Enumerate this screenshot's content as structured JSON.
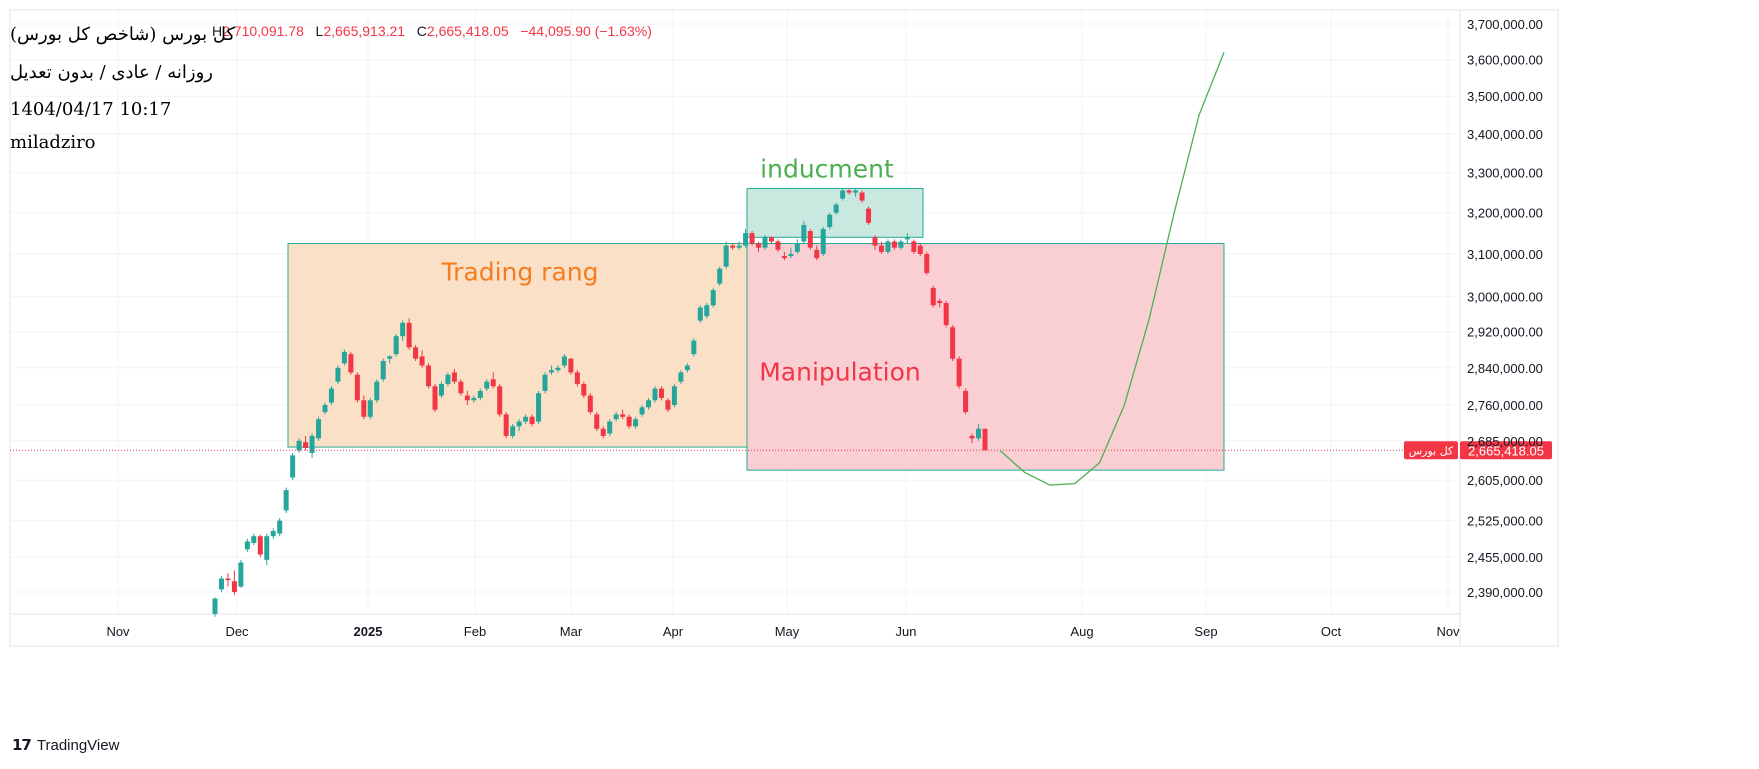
{
  "header": {
    "symbol_name": "کل بورس (شاخص کل بورس)",
    "high_label": "H",
    "high_value": "2,710,091.78",
    "low_label": "L",
    "low_value": "2,665,913.21",
    "close_label": "C",
    "close_value": "2,665,418.05",
    "change": "−44,095.90 (−1.63%)",
    "interval": "روزانه / عادی / بدون تعدیل",
    "datetime": "1404/04/17 10:17",
    "author": "miladziro"
  },
  "brand": {
    "name": "TradingView",
    "icon": "tradingview-logo-icon"
  },
  "price_tag": {
    "symbol": "کل بورس",
    "value": "2,665,418.05"
  },
  "colors": {
    "up": "#26a69a",
    "down": "#f23645",
    "trading_range_fill": "#f9e0c7",
    "manipulation_fill": "#f9cfd4",
    "inducement_fill": "#c9e8e0",
    "box_border": "#22ab94",
    "trading_range_text": "#f57c1f",
    "manipulation_text": "#f23645",
    "inducement_text": "#4caf50",
    "projection_line": "#4caf50"
  },
  "chart_data": {
    "type": "candlestick",
    "title": "",
    "ylim": [
      2350000,
      3740000
    ],
    "y_scale": "log",
    "grid": true,
    "x_tick_labels": [
      "Nov",
      "Dec",
      "2025",
      "Feb",
      "Mar",
      "Apr",
      "May",
      "Jun",
      "Aug",
      "Sep",
      "Oct",
      "Nov"
    ],
    "y_tick_labels": [
      "3,700,000.00",
      "3,600,000.00",
      "3,500,000.00",
      "3,400,000.00",
      "3,300,000.00",
      "3,200,000.00",
      "3,100,000.00",
      "3,000,000.00",
      "2,920,000.00",
      "2,840,000.00",
      "2,760,000.00",
      "2,685,000.00",
      "2,605,000.00",
      "2,525,000.00",
      "2,455,000.00",
      "2,390,000.00"
    ],
    "y_ticks": [
      3700000,
      3600000,
      3500000,
      3400000,
      3300000,
      3200000,
      3100000,
      3000000,
      2920000,
      2840000,
      2760000,
      2685000,
      2605000,
      2525000,
      2455000,
      2390000
    ],
    "last_price": 2665418.05,
    "annotations": [
      {
        "type": "box",
        "label": "Trading rang",
        "color": "trading_range",
        "price_top": 3125000,
        "price_bottom": 2672000
      },
      {
        "type": "box",
        "label": "Manipulation",
        "color": "manipulation",
        "price_top": 3125000,
        "price_bottom": 2625000
      },
      {
        "type": "box",
        "label": "inducment",
        "color": "inducement",
        "price_top": 3260000,
        "price_bottom": 3140000
      }
    ],
    "projection": {
      "type": "line",
      "color": "projection_line",
      "values": [
        2665000,
        2620000,
        2595000,
        2598000,
        2640000,
        2760000,
        2950000,
        3200000,
        3450000,
        3620000
      ]
    },
    "candles": [
      [
        2350000,
        2380000,
        2345000,
        2378000
      ],
      [
        2395000,
        2420000,
        2390000,
        2415000
      ],
      [
        2415000,
        2425000,
        2400000,
        2412000
      ],
      [
        2410000,
        2430000,
        2385000,
        2390000
      ],
      [
        2400000,
        2450000,
        2398000,
        2445000
      ],
      [
        2470000,
        2490000,
        2465000,
        2485000
      ],
      [
        2482000,
        2500000,
        2478000,
        2495000
      ],
      [
        2495000,
        2498000,
        2455000,
        2460000
      ],
      [
        2450000,
        2500000,
        2440000,
        2495000
      ],
      [
        2495000,
        2510000,
        2490000,
        2505000
      ],
      [
        2500000,
        2530000,
        2495000,
        2525000
      ],
      [
        2545000,
        2590000,
        2540000,
        2585000
      ],
      [
        2610000,
        2660000,
        2605000,
        2655000
      ],
      [
        2665000,
        2690000,
        2660000,
        2685000
      ],
      [
        2682000,
        2695000,
        2665000,
        2670000
      ],
      [
        2660000,
        2700000,
        2650000,
        2695000
      ],
      [
        2690000,
        2735000,
        2685000,
        2730000
      ],
      [
        2745000,
        2765000,
        2740000,
        2760000
      ],
      [
        2765000,
        2800000,
        2760000,
        2795000
      ],
      [
        2810000,
        2845000,
        2805000,
        2840000
      ],
      [
        2850000,
        2880000,
        2845000,
        2875000
      ],
      [
        2870000,
        2875000,
        2825000,
        2830000
      ],
      [
        2825000,
        2830000,
        2765000,
        2770000
      ],
      [
        2770000,
        2780000,
        2730000,
        2735000
      ],
      [
        2735000,
        2775000,
        2730000,
        2770000
      ],
      [
        2770000,
        2815000,
        2765000,
        2810000
      ],
      [
        2815000,
        2860000,
        2810000,
        2855000
      ],
      [
        2860000,
        2868000,
        2850000,
        2865000
      ],
      [
        2870000,
        2915000,
        2865000,
        2910000
      ],
      [
        2910000,
        2945000,
        2900000,
        2940000
      ],
      [
        2940000,
        2950000,
        2880000,
        2885000
      ],
      [
        2885000,
        2890000,
        2855000,
        2860000
      ],
      [
        2865000,
        2878000,
        2840000,
        2845000
      ],
      [
        2845000,
        2850000,
        2795000,
        2800000
      ],
      [
        2800000,
        2805000,
        2745000,
        2750000
      ],
      [
        2780000,
        2810000,
        2775000,
        2805000
      ],
      [
        2805000,
        2830000,
        2800000,
        2825000
      ],
      [
        2830000,
        2838000,
        2805000,
        2810000
      ],
      [
        2810000,
        2815000,
        2780000,
        2785000
      ],
      [
        2780000,
        2790000,
        2760000,
        2770000
      ],
      [
        2770000,
        2780000,
        2765000,
        2775000
      ],
      [
        2775000,
        2795000,
        2770000,
        2790000
      ],
      [
        2795000,
        2815000,
        2790000,
        2810000
      ],
      [
        2815000,
        2830000,
        2795000,
        2800000
      ],
      [
        2800000,
        2805000,
        2735000,
        2740000
      ],
      [
        2740000,
        2745000,
        2690000,
        2695000
      ],
      [
        2695000,
        2720000,
        2690000,
        2715000
      ],
      [
        2715000,
        2730000,
        2705000,
        2725000
      ],
      [
        2725000,
        2740000,
        2720000,
        2735000
      ],
      [
        2735000,
        2740000,
        2715000,
        2720000
      ],
      [
        2725000,
        2790000,
        2720000,
        2785000
      ],
      [
        2790000,
        2830000,
        2785000,
        2825000
      ],
      [
        2830000,
        2845000,
        2825000,
        2835000
      ],
      [
        2835000,
        2845000,
        2830000,
        2840000
      ],
      [
        2845000,
        2870000,
        2840000,
        2865000
      ],
      [
        2860000,
        2862000,
        2825000,
        2830000
      ],
      [
        2830000,
        2835000,
        2800000,
        2805000
      ],
      [
        2805000,
        2810000,
        2775000,
        2780000
      ],
      [
        2780000,
        2785000,
        2740000,
        2745000
      ],
      [
        2740000,
        2745000,
        2705000,
        2710000
      ],
      [
        2710000,
        2715000,
        2690000,
        2695000
      ],
      [
        2700000,
        2730000,
        2695000,
        2725000
      ],
      [
        2730000,
        2745000,
        2725000,
        2740000
      ],
      [
        2740000,
        2750000,
        2730000,
        2735000
      ],
      [
        2735000,
        2740000,
        2710000,
        2715000
      ],
      [
        2715000,
        2735000,
        2710000,
        2730000
      ],
      [
        2740000,
        2760000,
        2735000,
        2755000
      ],
      [
        2755000,
        2775000,
        2750000,
        2770000
      ],
      [
        2770000,
        2800000,
        2765000,
        2795000
      ],
      [
        2795000,
        2800000,
        2770000,
        2775000
      ],
      [
        2770000,
        2775000,
        2745000,
        2750000
      ],
      [
        2760000,
        2805000,
        2755000,
        2800000
      ],
      [
        2810000,
        2835000,
        2805000,
        2830000
      ],
      [
        2835000,
        2850000,
        2830000,
        2845000
      ],
      [
        2870000,
        2905000,
        2865000,
        2900000
      ],
      [
        2945000,
        2980000,
        2940000,
        2975000
      ],
      [
        2955000,
        2985000,
        2950000,
        2980000
      ],
      [
        2980000,
        3020000,
        2975000,
        3015000
      ],
      [
        3030000,
        3070000,
        3025000,
        3065000
      ],
      [
        3070000,
        3130000,
        3065000,
        3120000
      ],
      [
        3120000,
        3125000,
        3110000,
        3115000
      ],
      [
        3115000,
        3130000,
        3110000,
        3120000
      ],
      [
        3120000,
        3160000,
        3115000,
        3150000
      ],
      [
        3150000,
        3155000,
        3120000,
        3125000
      ],
      [
        3125000,
        3130000,
        3105000,
        3115000
      ],
      [
        3115000,
        3145000,
        3110000,
        3140000
      ],
      [
        3140000,
        3142000,
        3125000,
        3130000
      ],
      [
        3130000,
        3135000,
        3105000,
        3110000
      ],
      [
        3095000,
        3105000,
        3085000,
        3090000
      ],
      [
        3095000,
        3115000,
        3090000,
        3100000
      ],
      [
        3105000,
        3135000,
        3100000,
        3125000
      ],
      [
        3130000,
        3180000,
        3125000,
        3170000
      ],
      [
        3155000,
        3160000,
        3110000,
        3115000
      ],
      [
        3110000,
        3120000,
        3085000,
        3090000
      ],
      [
        3100000,
        3165000,
        3095000,
        3160000
      ],
      [
        3165000,
        3200000,
        3160000,
        3195000
      ],
      [
        3200000,
        3225000,
        3195000,
        3220000
      ],
      [
        3235000,
        3260000,
        3230000,
        3255000
      ],
      [
        3255000,
        3258000,
        3245000,
        3250000
      ],
      [
        3250000,
        3260000,
        3240000,
        3255000
      ],
      [
        3250000,
        3255000,
        3225000,
        3230000
      ],
      [
        3210000,
        3215000,
        3170000,
        3175000
      ],
      [
        3140000,
        3145000,
        3110000,
        3120000
      ],
      [
        3120000,
        3130000,
        3100000,
        3105000
      ],
      [
        3105000,
        3135000,
        3100000,
        3130000
      ],
      [
        3130000,
        3135000,
        3110000,
        3115000
      ],
      [
        3115000,
        3135000,
        3110000,
        3130000
      ],
      [
        3135000,
        3150000,
        3125000,
        3140000
      ],
      [
        3130000,
        3135000,
        3100000,
        3105000
      ],
      [
        3120000,
        3125000,
        3095000,
        3100000
      ],
      [
        3100000,
        3105000,
        3050000,
        3055000
      ],
      [
        3020000,
        3025000,
        2975000,
        2980000
      ],
      [
        2990000,
        2995000,
        2975000,
        2985000
      ],
      [
        2985000,
        2990000,
        2930000,
        2935000
      ],
      [
        2930000,
        2935000,
        2855000,
        2860000
      ],
      [
        2860000,
        2865000,
        2795000,
        2800000
      ],
      [
        2790000,
        2795000,
        2740000,
        2745000
      ],
      [
        2695000,
        2700000,
        2680000,
        2690000
      ],
      [
        2690000,
        2720000,
        2685000,
        2710000
      ],
      [
        2710000,
        2710091.78,
        2665913.21,
        2665418.05
      ]
    ]
  }
}
